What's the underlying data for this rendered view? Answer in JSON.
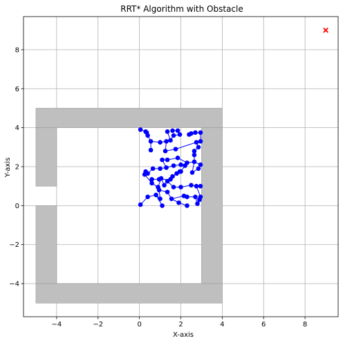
{
  "chart_data": {
    "type": "scatter",
    "title": "RRT* Algorithm with Obstacle",
    "xlabel": "X-axis",
    "ylabel": "Y-axis",
    "xlim": [
      -5.6,
      9.6
    ],
    "ylim": [
      -5.7,
      9.7
    ],
    "grid": true,
    "xticks": [
      -4,
      -2,
      0,
      2,
      4,
      6,
      8
    ],
    "yticks": [
      -4,
      -2,
      0,
      2,
      4,
      6,
      8
    ],
    "xtick_labels": [
      "−4",
      "−2",
      "0",
      "2",
      "4",
      "6",
      "8"
    ],
    "ytick_labels": [
      "−4",
      "−2",
      "0",
      "2",
      "4",
      "6",
      "8"
    ],
    "obstacle_color": "#bfbfbf",
    "node_color": "#0000ff",
    "goal_color": "#ff0000",
    "obstacles": [
      {
        "x": [
          -5,
          4
        ],
        "y": [
          4,
          5
        ]
      },
      {
        "x": [
          -5,
          4
        ],
        "y": [
          -5,
          -4
        ]
      },
      {
        "x": [
          3,
          4
        ],
        "y": [
          -4,
          4
        ]
      },
      {
        "x": [
          -5,
          -4
        ],
        "y": [
          1,
          4
        ]
      },
      {
        "x": [
          -5,
          -4
        ],
        "y": [
          -4,
          0
        ]
      }
    ],
    "goal": {
      "x": 9,
      "y": 9
    },
    "nodes": [
      [
        0.05,
        0.05
      ],
      [
        0.4,
        0.45
      ],
      [
        0.8,
        0.55
      ],
      [
        1.1,
        0.0
      ],
      [
        1.0,
        0.35
      ],
      [
        0.95,
        0.8
      ],
      [
        1.35,
        0.7
      ],
      [
        1.55,
        0.35
      ],
      [
        1.9,
        0.15
      ],
      [
        2.3,
        0.0
      ],
      [
        2.15,
        0.5
      ],
      [
        2.3,
        0.45
      ],
      [
        2.7,
        0.45
      ],
      [
        2.8,
        0.1
      ],
      [
        2.9,
        0.3
      ],
      [
        2.95,
        0.45
      ],
      [
        2.75,
        1.0
      ],
      [
        2.95,
        1.0
      ],
      [
        2.5,
        1.05
      ],
      [
        2.0,
        0.95
      ],
      [
        1.65,
        0.95
      ],
      [
        1.35,
        1.25
      ],
      [
        1.2,
        1.05
      ],
      [
        1.05,
        1.4
      ],
      [
        0.9,
        0.95
      ],
      [
        0.6,
        1.15
      ],
      [
        0.25,
        1.6
      ],
      [
        0.3,
        1.75
      ],
      [
        0.6,
        1.35
      ],
      [
        0.95,
        1.35
      ],
      [
        1.5,
        1.35
      ],
      [
        1.6,
        1.5
      ],
      [
        1.8,
        1.65
      ],
      [
        2.0,
        1.75
      ],
      [
        2.2,
        2.05
      ],
      [
        2.0,
        2.1
      ],
      [
        1.65,
        2.05
      ],
      [
        1.3,
        1.95
      ],
      [
        1.0,
        1.9
      ],
      [
        0.65,
        1.9
      ],
      [
        0.4,
        1.65
      ],
      [
        1.1,
        2.35
      ],
      [
        1.35,
        2.35
      ],
      [
        1.85,
        2.45
      ],
      [
        2.3,
        2.2
      ],
      [
        2.65,
        2.25
      ],
      [
        2.95,
        2.1
      ],
      [
        2.55,
        1.7
      ],
      [
        2.85,
        1.9
      ],
      [
        2.65,
        2.6
      ],
      [
        2.65,
        2.8
      ],
      [
        2.85,
        3.0
      ],
      [
        2.75,
        3.25
      ],
      [
        2.95,
        3.3
      ],
      [
        2.95,
        3.75
      ],
      [
        2.7,
        3.75
      ],
      [
        2.5,
        3.7
      ],
      [
        2.4,
        3.65
      ],
      [
        1.85,
        3.85
      ],
      [
        1.6,
        3.85
      ],
      [
        1.95,
        3.65
      ],
      [
        1.35,
        3.8
      ],
      [
        1.5,
        3.35
      ],
      [
        1.65,
        3.6
      ],
      [
        1.3,
        3.3
      ],
      [
        1.0,
        3.25
      ],
      [
        0.55,
        3.3
      ],
      [
        0.35,
        3.75
      ],
      [
        0.3,
        3.8
      ],
      [
        0.05,
        3.9
      ],
      [
        0.55,
        2.85
      ],
      [
        1.25,
        2.8
      ],
      [
        1.75,
        2.9
      ],
      [
        0.4,
        3.6
      ],
      [
        1.95,
        1.75
      ]
    ],
    "edges": [
      [
        0,
        1
      ],
      [
        1,
        2
      ],
      [
        2,
        3
      ],
      [
        2,
        4
      ],
      [
        4,
        5
      ],
      [
        5,
        6
      ],
      [
        6,
        7
      ],
      [
        7,
        8
      ],
      [
        8,
        9
      ],
      [
        7,
        10
      ],
      [
        10,
        11
      ],
      [
        11,
        12
      ],
      [
        12,
        13
      ],
      [
        12,
        14
      ],
      [
        14,
        15
      ],
      [
        15,
        16
      ],
      [
        16,
        17
      ],
      [
        16,
        18
      ],
      [
        18,
        19
      ],
      [
        19,
        20
      ],
      [
        20,
        21
      ],
      [
        21,
        22
      ],
      [
        22,
        23
      ],
      [
        23,
        24
      ],
      [
        24,
        25
      ],
      [
        25,
        26
      ],
      [
        26,
        27
      ],
      [
        25,
        28
      ],
      [
        28,
        29
      ],
      [
        29,
        30
      ],
      [
        30,
        31
      ],
      [
        31,
        32
      ],
      [
        32,
        33
      ],
      [
        33,
        74
      ],
      [
        33,
        34
      ],
      [
        34,
        35
      ],
      [
        35,
        36
      ],
      [
        36,
        37
      ],
      [
        37,
        38
      ],
      [
        38,
        39
      ],
      [
        39,
        40
      ],
      [
        37,
        41
      ],
      [
        41,
        42
      ],
      [
        42,
        43
      ],
      [
        43,
        44
      ],
      [
        44,
        45
      ],
      [
        45,
        46
      ],
      [
        45,
        47
      ],
      [
        47,
        48
      ],
      [
        45,
        49
      ],
      [
        49,
        50
      ],
      [
        50,
        51
      ],
      [
        51,
        52
      ],
      [
        52,
        53
      ],
      [
        53,
        54
      ],
      [
        54,
        55
      ],
      [
        55,
        56
      ],
      [
        56,
        57
      ],
      [
        52,
        72
      ],
      [
        72,
        71
      ],
      [
        71,
        64
      ],
      [
        64,
        65
      ],
      [
        65,
        66
      ],
      [
        66,
        73
      ],
      [
        73,
        67
      ],
      [
        67,
        68
      ],
      [
        66,
        70
      ],
      [
        64,
        62
      ],
      [
        62,
        63
      ],
      [
        63,
        60
      ],
      [
        60,
        58
      ],
      [
        58,
        59
      ],
      [
        62,
        61
      ],
      [
        68,
        69
      ]
    ]
  }
}
